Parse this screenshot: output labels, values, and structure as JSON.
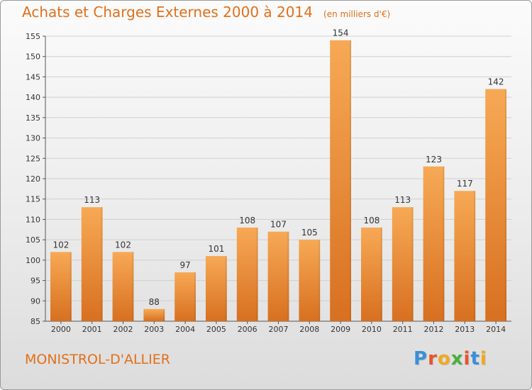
{
  "header": {
    "title": "Achats et Charges Externes 2000 à 2014",
    "unit": "(en milliers d'€)"
  },
  "footer": {
    "city": "MONISTROL-D'ALLIER",
    "logo_letters": [
      "P",
      "r",
      "o",
      "x",
      "i",
      "t",
      "i"
    ],
    "logo_colors": [
      "#3a8fd8",
      "#e8542a",
      "#f2a81d",
      "#4caf3a",
      "#e8542a",
      "#3a8fd8",
      "#f2a81d"
    ]
  },
  "colors": {
    "accent": "#e0701a",
    "bar_light": "#f7a955",
    "bar_dark": "#d77020",
    "grid": "#cfcfcf"
  },
  "chart_data": {
    "type": "bar",
    "title": "Achats et Charges Externes 2000 à 2014",
    "subtitle": "(en milliers d'€)",
    "categories": [
      "2000",
      "2001",
      "2002",
      "2003",
      "2004",
      "2005",
      "2006",
      "2007",
      "2008",
      "2009",
      "2010",
      "2011",
      "2012",
      "2013",
      "2014"
    ],
    "values": [
      102,
      113,
      102,
      88,
      97,
      101,
      108,
      107,
      105,
      154,
      108,
      113,
      123,
      117,
      142
    ],
    "ylim": [
      85,
      155
    ],
    "yticks": [
      85,
      90,
      95,
      100,
      105,
      110,
      115,
      120,
      125,
      130,
      135,
      140,
      145,
      150,
      155
    ],
    "xlabel": "",
    "ylabel": "",
    "grid": true,
    "data_labels": true
  }
}
